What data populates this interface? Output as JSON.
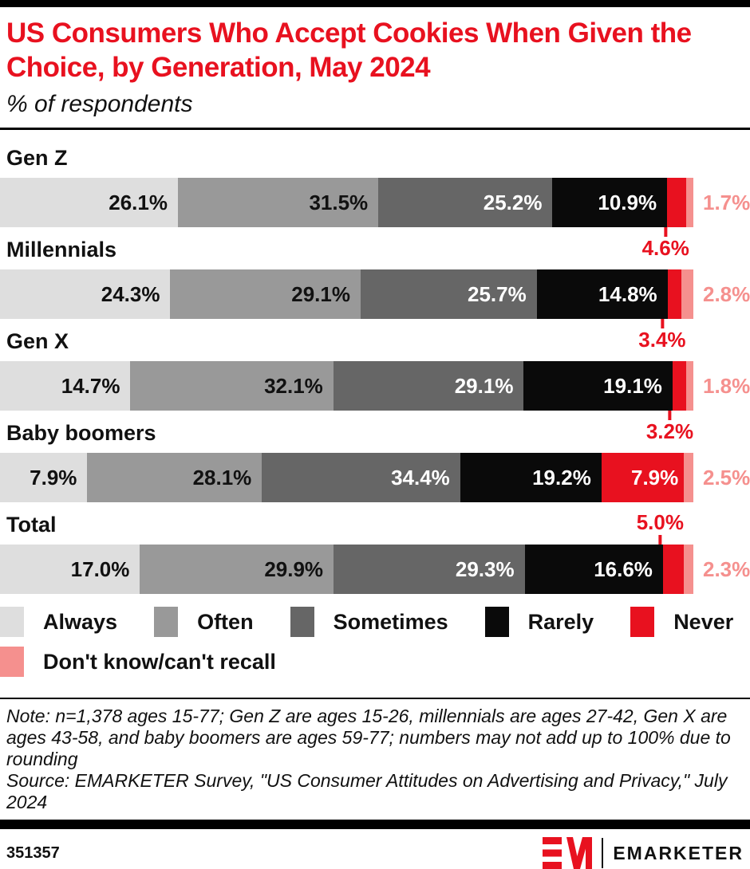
{
  "header": {
    "title": "US Consumers Who Accept Cookies When Given the Choice, by Generation, May 2024",
    "subtitle": "% of respondents"
  },
  "chart_data": {
    "type": "bar",
    "stacked": true,
    "orientation": "horizontal",
    "unit": "%",
    "value_suffix": "%",
    "axis_visible": false,
    "categories": [
      "Gen Z",
      "Millennials",
      "Gen X",
      "Baby boomers",
      "Total"
    ],
    "series": [
      {
        "name": "Always",
        "color": "#dedede",
        "label_color": "#111111",
        "values": [
          26.1,
          24.3,
          14.7,
          7.9,
          17.0
        ]
      },
      {
        "name": "Often",
        "color": "#999999",
        "label_color": "#111111",
        "values": [
          31.5,
          29.1,
          32.1,
          28.1,
          29.9
        ]
      },
      {
        "name": "Sometimes",
        "color": "#666666",
        "label_color": "#ffffff",
        "values": [
          25.2,
          25.7,
          29.1,
          34.4,
          29.3
        ]
      },
      {
        "name": "Rarely",
        "color": "#0a0a0a",
        "label_color": "#ffffff",
        "values": [
          10.9,
          14.8,
          19.1,
          19.2,
          16.6
        ]
      },
      {
        "name": "Never",
        "color": "#e8111f",
        "label_color": "#ffffff",
        "values": [
          4.6,
          3.4,
          3.2,
          7.9,
          5.0
        ]
      },
      {
        "name": "Don't know/can't recall",
        "color": "#f5908e",
        "label_color": "#f5908e",
        "values": [
          1.7,
          2.8,
          1.8,
          2.5,
          2.3
        ]
      }
    ],
    "never_label_positions": [
      "below",
      "below",
      "below",
      "inside",
      "above"
    ],
    "callout_color": "#e8111f",
    "legend_rows": [
      [
        0,
        1,
        2,
        3,
        4
      ],
      [
        5
      ]
    ]
  },
  "notes": {
    "note": "Note: n=1,378 ages 15-77; Gen Z are ages 15-26, millennials are ages 27-42, Gen X are ages 43-58, and baby boomers are ages 59-77; numbers may not add up to 100% due to rounding",
    "source": "Source: EMARKETER Survey, \"US Consumer Attitudes on Advertising and Privacy,\" July 2024"
  },
  "footer": {
    "chart_id": "351357",
    "brand": "EMARKETER"
  },
  "colors": {
    "accent_red": "#e8111f",
    "pink": "#f5908e",
    "black_bar": "#000000"
  }
}
